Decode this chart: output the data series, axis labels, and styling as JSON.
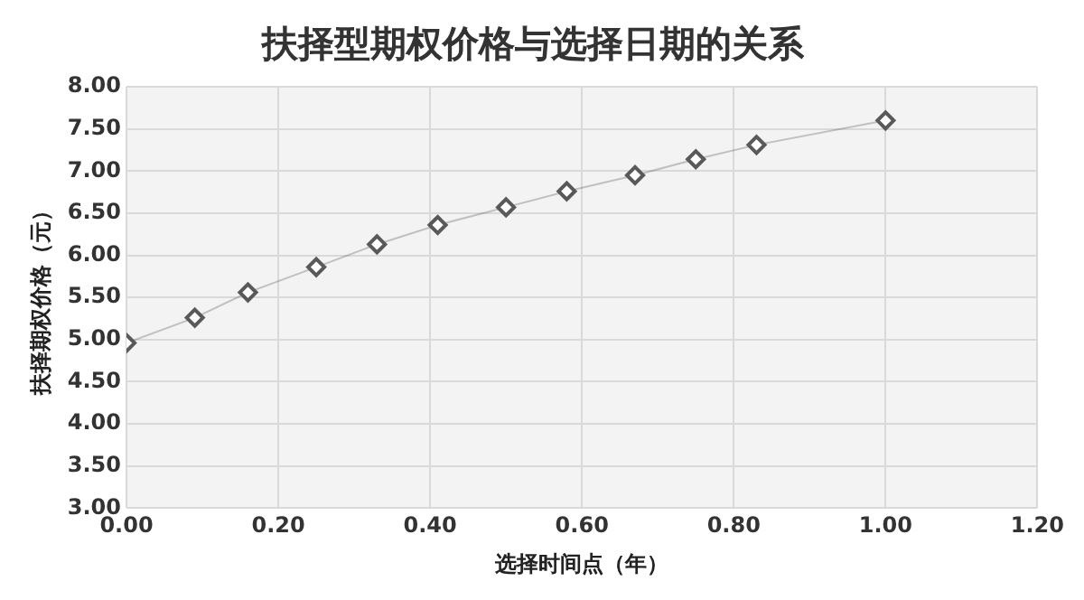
{
  "chart_data": {
    "type": "line",
    "title": "扶择型期权价格与选择日期的关系",
    "xlabel": "选择时间点（年）",
    "ylabel": "扶择期权价格（元）",
    "x": [
      0,
      0.09,
      0.16,
      0.25,
      0.33,
      0.41,
      0.5,
      0.58,
      0.67,
      0.75,
      0.83,
      1.0
    ],
    "series": [
      {
        "color": "#595959",
        "values": [
          4.96,
          5.26,
          5.56,
          5.86,
          6.13,
          6.36,
          6.57,
          6.76,
          6.95,
          7.14,
          7.31,
          7.6
        ]
      }
    ],
    "xlim": [
      0,
      1.2
    ],
    "xticks": [
      {
        "value": 0,
        "label": "0.00"
      },
      {
        "value": 0.2,
        "label": "0.20"
      },
      {
        "value": 0.4,
        "label": "0.40"
      },
      {
        "value": 0.6,
        "label": "0.60"
      },
      {
        "value": 0.8,
        "label": "0.80"
      },
      {
        "value": 1,
        "label": "1.00"
      },
      {
        "value": 1.2,
        "label": "1.20"
      }
    ],
    "ylim": [
      3,
      8
    ],
    "yticks": [
      {
        "value": 3,
        "label": "3.00"
      },
      {
        "value": 3.5,
        "label": "3.50"
      },
      {
        "value": 4,
        "label": "4.00"
      },
      {
        "value": 4.5,
        "label": "4.50"
      },
      {
        "value": 5,
        "label": "5.00"
      },
      {
        "value": 5.5,
        "label": "5.50"
      },
      {
        "value": 6,
        "label": "6.00"
      },
      {
        "value": 6.5,
        "label": "6.50"
      },
      {
        "value": 7,
        "label": "7.00"
      },
      {
        "value": 7.5,
        "label": "7.50"
      },
      {
        "value": 8,
        "label": "8.00"
      }
    ],
    "grid": true,
    "marker": "diamond",
    "line_style": "solid",
    "legend": false
  }
}
